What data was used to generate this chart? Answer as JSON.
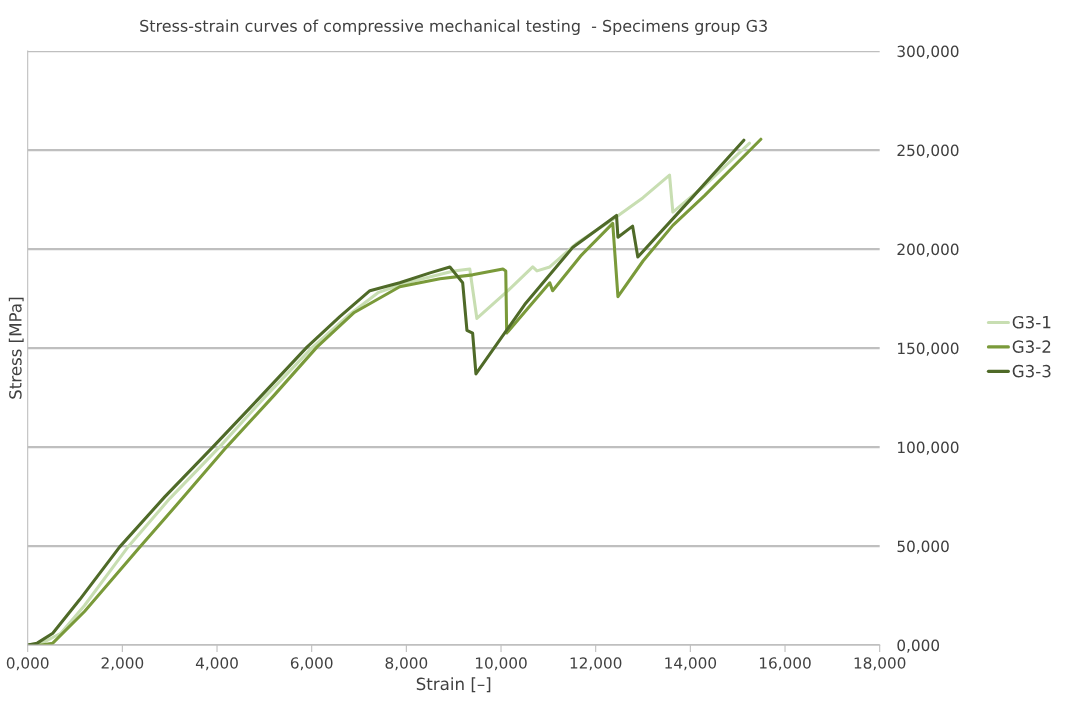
{
  "chart_data": {
    "type": "line",
    "title": "Stress-strain curves of compressive mechanical testing  - Specimens group G3",
    "xlabel": "Strain [–]",
    "ylabel": "Stress [MPa]",
    "xlim": [
      0,
      18
    ],
    "ylim": [
      0,
      300
    ],
    "xticks": [
      {
        "value": 0,
        "label": "0,000"
      },
      {
        "value": 2,
        "label": "2,000"
      },
      {
        "value": 4,
        "label": "4,000"
      },
      {
        "value": 6,
        "label": "6,000"
      },
      {
        "value": 8,
        "label": "8,000"
      },
      {
        "value": 10,
        "label": "10,000"
      },
      {
        "value": 12,
        "label": "12,000"
      },
      {
        "value": 14,
        "label": "14,000"
      },
      {
        "value": 16,
        "label": "16,000"
      },
      {
        "value": 18,
        "label": "18,000"
      }
    ],
    "yticks": [
      {
        "value": 0,
        "label": "0,000"
      },
      {
        "value": 50,
        "label": "50,000"
      },
      {
        "value": 100,
        "label": "100,000"
      },
      {
        "value": 150,
        "label": "150,000"
      },
      {
        "value": 200,
        "label": "200,000"
      },
      {
        "value": 250,
        "label": "250,000"
      },
      {
        "value": 300,
        "label": "300,000"
      }
    ],
    "grid": "y",
    "legend": "right",
    "marker": "none",
    "line_style": "solid",
    "series": [
      {
        "name": "G3-1",
        "color": "#c8deb2",
        "x": [
          0,
          0.3,
          0.7,
          1.2,
          2.1,
          3.0,
          4.05,
          5.0,
          6.0,
          6.8,
          7.4,
          8.0,
          9.0,
          9.34,
          9.49,
          10.1,
          10.67,
          10.76,
          11.03,
          11.6,
          12.36,
          13.0,
          13.56,
          13.63,
          14.3,
          15.25
        ],
        "values": [
          0,
          1,
          6,
          20,
          49,
          74,
          100,
          125,
          150,
          167,
          178,
          183,
          189,
          190,
          165,
          178,
          191,
          189,
          191,
          203,
          215,
          226,
          237.4,
          218.7,
          232,
          253.5
        ]
      },
      {
        "name": "G3-2",
        "color": "#7a9a3a",
        "x": [
          0,
          0.3,
          0.53,
          1.2,
          2.37,
          3.3,
          4.2,
          5.2,
          6.11,
          6.9,
          7.86,
          8.71,
          9.4,
          10.04,
          10.1,
          10.12,
          10.6,
          11.03,
          11.09,
          11.7,
          12.36,
          12.47,
          13.0,
          13.63,
          14.3,
          15.49
        ],
        "values": [
          0,
          0,
          1,
          17,
          49.5,
          75,
          100,
          126,
          150.5,
          168,
          181,
          185,
          187,
          190,
          189,
          157.6,
          171,
          183,
          179,
          197,
          213,
          176,
          194,
          212,
          227,
          255.5
        ]
      },
      {
        "name": "G3-3",
        "color": "#4f6a28",
        "x": [
          0,
          0.2,
          0.53,
          1.1,
          1.94,
          2.9,
          3.91,
          4.9,
          5.9,
          6.6,
          7.23,
          7.86,
          8.5,
          8.92,
          9.09,
          9.19,
          9.28,
          9.4,
          9.47,
          10.5,
          11.52,
          12.44,
          12.47,
          12.78,
          12.89,
          14.0,
          15.13
        ],
        "values": [
          0,
          1,
          6,
          23,
          49.5,
          75,
          100,
          125,
          150.5,
          166,
          179,
          183,
          188,
          191,
          186,
          183,
          159,
          157.6,
          137,
          172,
          201,
          217,
          206,
          211.6,
          196,
          225,
          255
        ]
      }
    ]
  }
}
